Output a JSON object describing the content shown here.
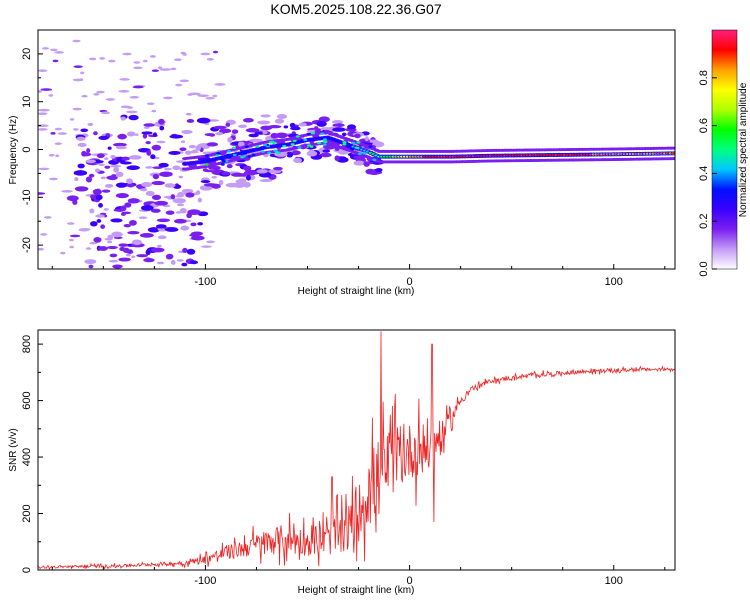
{
  "title": "KOM5.2025.108.22.36.G07",
  "chart_data": [
    {
      "type": "heatmap",
      "title": "KOM5.2025.108.22.36.G07",
      "xlabel": "Height of straight line (km)",
      "ylabel": "Frequency (Hz)",
      "xlim": [
        -182,
        130
      ],
      "ylim": [
        -25,
        25
      ],
      "x_ticks": [
        -100,
        0,
        100
      ],
      "y_ticks": [
        -20,
        -10,
        0,
        10,
        20
      ],
      "colorbar": {
        "label": "Normalized spectral amplitude",
        "range": [
          0,
          1
        ],
        "ticks": [
          "0.0",
          "0.2",
          "0.4",
          "0.6",
          "0.8"
        ],
        "colors": [
          "#ffffff",
          "#c49bf5",
          "#7a1ff0",
          "#3a00ff",
          "#0010ff",
          "#00c8ff",
          "#00ff80",
          "#00ff00",
          "#b0ff00",
          "#ffff00",
          "#ffa000",
          "#ff0000",
          "#ff2080"
        ]
      },
      "ridge": {
        "x": [
          -110,
          -100,
          -90,
          -80,
          -70,
          -60,
          -50,
          -40,
          -30,
          -20,
          -15,
          -10,
          0,
          10,
          20,
          40,
          60,
          80,
          100,
          130
        ],
        "y": [
          -3,
          -2.5,
          -1.5,
          -0.5,
          0.5,
          1,
          2,
          2.5,
          1,
          -0.5,
          -1.5,
          -1.5,
          -1.5,
          -1.5,
          -1.5,
          -1.3,
          -1.2,
          -1.1,
          -1.0,
          -0.8
        ],
        "amplitude": [
          0.25,
          0.3,
          0.3,
          0.35,
          0.3,
          0.3,
          0.3,
          0.35,
          0.35,
          0.45,
          0.5,
          0.6,
          0.8,
          0.9,
          0.95,
          0.95,
          0.9,
          0.9,
          0.85,
          0.8
        ]
      },
      "grid": false
    },
    {
      "type": "line",
      "xlabel": "Height of straight line (km)",
      "ylabel": "SNR (v/v)",
      "xlim": [
        -182,
        130
      ],
      "ylim": [
        0,
        850
      ],
      "x_ticks": [
        -100,
        0,
        100
      ],
      "y_ticks": [
        0,
        200,
        400,
        600,
        800
      ],
      "color": "#ee2222",
      "envelope": {
        "x": [
          -182,
          -140,
          -110,
          -100,
          -90,
          -80,
          -70,
          -60,
          -50,
          -40,
          -30,
          -25,
          -20,
          -15,
          -10,
          -5,
          0,
          5,
          10,
          15,
          20,
          25,
          30,
          40,
          50,
          60,
          70,
          80,
          90,
          100,
          110,
          120,
          130
        ],
        "mean": [
          10,
          15,
          25,
          40,
          60,
          80,
          100,
          110,
          100,
          110,
          150,
          200,
          280,
          330,
          380,
          400,
          420,
          430,
          440,
          460,
          530,
          600,
          640,
          670,
          680,
          690,
          695,
          700,
          705,
          705,
          710,
          710,
          712
        ],
        "spread": [
          8,
          10,
          15,
          30,
          50,
          70,
          90,
          110,
          100,
          120,
          160,
          200,
          260,
          300,
          250,
          220,
          200,
          200,
          200,
          120,
          60,
          30,
          20,
          15,
          15,
          15,
          15,
          15,
          15,
          12,
          12,
          10,
          10
        ]
      },
      "peaks": [
        {
          "x": -14,
          "y": 845
        },
        {
          "x": 11,
          "y": 800
        },
        {
          "x": -38,
          "y": 330
        },
        {
          "x": 12,
          "y": 170
        }
      ],
      "grid": false
    }
  ]
}
